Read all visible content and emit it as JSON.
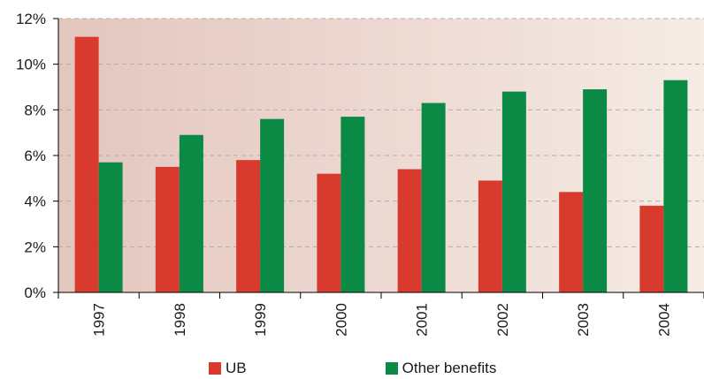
{
  "chart_data": {
    "type": "bar",
    "title": "",
    "xlabel": "",
    "ylabel": "",
    "categories": [
      "1997",
      "1998",
      "1999",
      "2000",
      "2001",
      "2002",
      "2003",
      "2004"
    ],
    "series": [
      {
        "name": "UB",
        "color": "#d83a2e",
        "values": [
          11.2,
          5.5,
          5.8,
          5.2,
          5.4,
          4.9,
          4.4,
          3.8
        ]
      },
      {
        "name": "Other benefits",
        "color": "#0a8a44",
        "values": [
          5.7,
          6.9,
          7.6,
          7.7,
          8.3,
          8.8,
          8.9,
          9.3
        ]
      }
    ],
    "ylim": [
      0,
      12
    ],
    "yticks": [
      0,
      2,
      4,
      6,
      8,
      10,
      12
    ],
    "ytick_labels": [
      "0%",
      "2%",
      "4%",
      "6%",
      "8%",
      "10%",
      "12%"
    ],
    "grid": "horizontal dashed",
    "legend_position": "bottom",
    "background_gradient": [
      "#e3c6be",
      "#f6ebe5"
    ]
  }
}
